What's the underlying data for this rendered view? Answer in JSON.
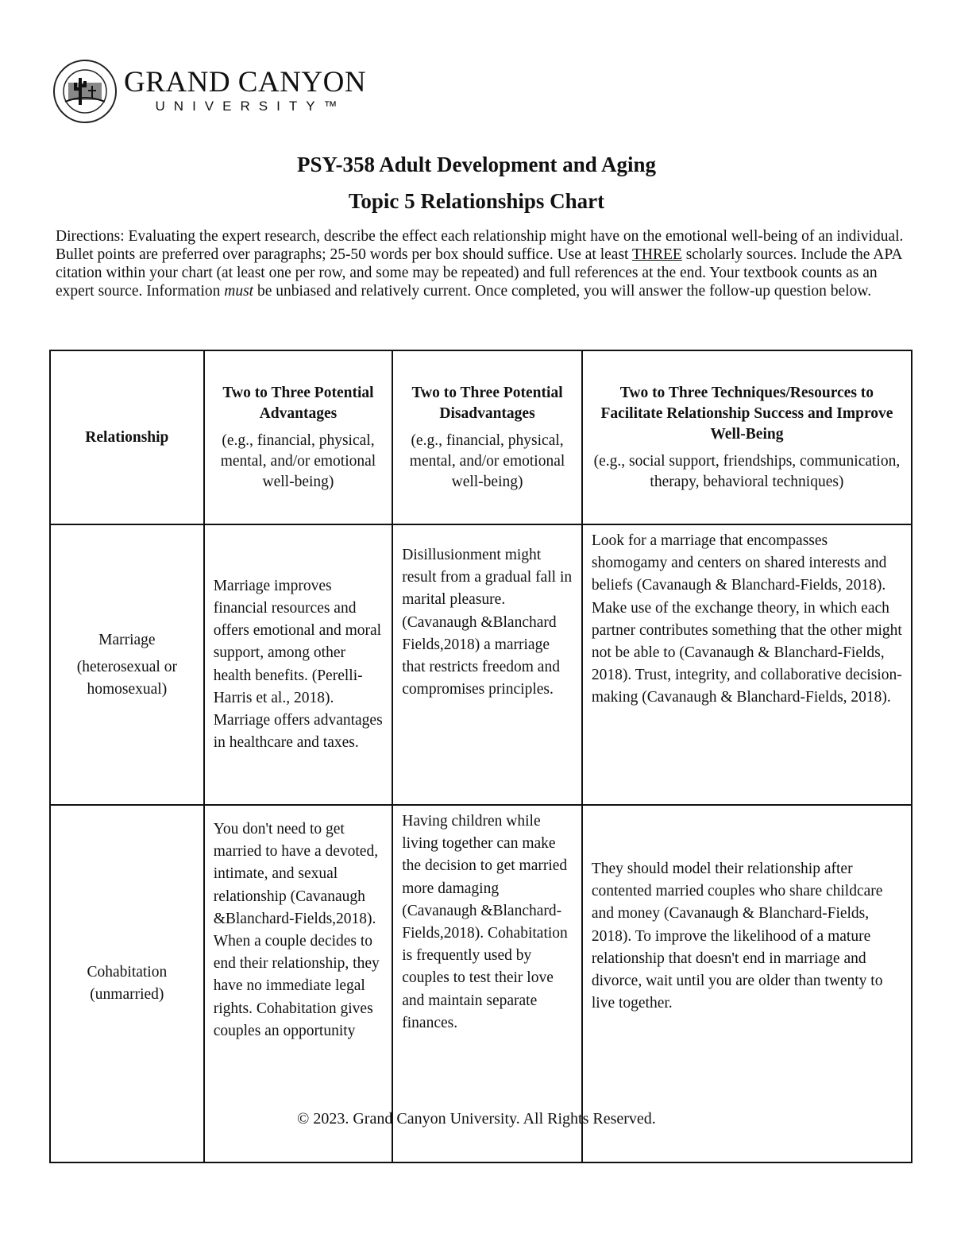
{
  "logo": {
    "line1": "GRAND CANYON",
    "line2": "UNIVERSITY™",
    "seal_text": "GRAND CANYON UNIVERSITY · ARIZONA 1949"
  },
  "title": "PSY-358 Adult Development and Aging",
  "subtitle": "Topic 5 Relationships Chart",
  "directions": {
    "part1": "Directions: Evaluating the expert research, describe the effect each relationship might have on the emotional well-being of an individual. Bullet points are preferred over paragraphs; 25-50 words per box should suffice. Use at least ",
    "underlined": "THREE",
    "part2": " scholarly sources. Include the APA citation within your chart (at least one per row, and some may be repeated) and full references at the end. Your textbook counts as an expert source. Information ",
    "italic": "must",
    "part3": " be unbiased and relatively current. Once completed, you will answer the follow-up question below."
  },
  "table": {
    "headers": [
      {
        "title": "Relationship",
        "sub": ""
      },
      {
        "title": "Two to Three Potential Advantages",
        "sub": "(e.g., financial, physical, mental, and/or emotional well-being)"
      },
      {
        "title": "Two to Three Potential Disadvantages",
        "sub": "(e.g., financial, physical, mental, and/or emotional well-being)"
      },
      {
        "title": "Two to Three Techniques/Resources to Facilitate Relationship Success and Improve Well-Being",
        "sub": "(e.g., social support, friendships, communication, therapy, behavioral techniques)"
      }
    ],
    "rows": [
      {
        "relationship": "Marriage",
        "relationship_sub": "(heterosexual or homosexual)",
        "advantages": "Marriage improves financial resources and offers emotional and moral support, among other health benefits. (Perelli-Harris et al., 2018).  Marriage offers advantages in healthcare and taxes.",
        "disadvantages": " Disillusionment might result from a gradual fall in marital pleasure. (Cavanaugh &Blanchard Fields,2018) a marriage that restricts freedom and compromises principles.",
        "techniques": "Look for a marriage that encompasses shomogamy and centers on shared interests and beliefs (Cavanaugh & Blanchard-Fields, 2018). Make use of the exchange theory, in which each partner contributes something that the other might not be able to (Cavanaugh & Blanchard-Fields, 2018). Trust, integrity, and collaborative decision-making (Cavanaugh & Blanchard-Fields, 2018)."
      },
      {
        "relationship": "Cohabitation",
        "relationship_sub": "(unmarried)",
        "advantages": "You don't need to get married to have a devoted, intimate, and sexual relationship (Cavanaugh &Blanchard-Fields,2018).  When a couple decides to end their relationship, they have no immediate legal rights. Cohabitation gives couples an opportunity",
        "disadvantages": "Having children while living together can make the decision to get married more damaging (Cavanaugh &Blanchard-Fields,2018). Cohabitation is frequently used by couples to test their love and maintain separate finances.",
        "techniques": "They should model their relationship after contented married couples who share childcare and money (Cavanaugh & Blanchard-Fields, 2018). To improve the likelihood of a mature relationship that doesn't end in marriage and divorce, wait until you are older than twenty to live together."
      }
    ]
  },
  "footer": "© 2023. Grand Canyon University. All Rights Reserved."
}
